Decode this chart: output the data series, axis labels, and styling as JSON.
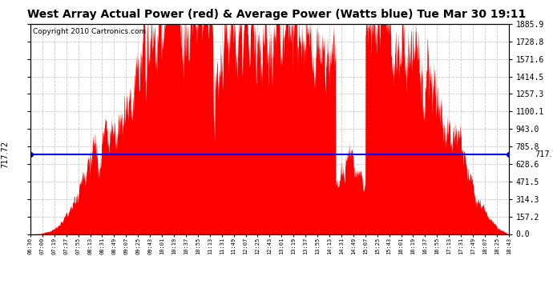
{
  "title": "West Array Actual Power (red) & Average Power (Watts blue) Tue Mar 30 19:11",
  "copyright": "Copyright 2010 Cartronics.com",
  "average_power": 717.72,
  "y_max": 1885.9,
  "y_ticks": [
    0.0,
    157.2,
    314.3,
    471.5,
    628.6,
    785.8,
    943.0,
    1100.1,
    1257.3,
    1414.5,
    1571.6,
    1728.8,
    1885.9
  ],
  "x_labels": [
    "06:36",
    "07:00",
    "07:19",
    "07:37",
    "07:55",
    "08:13",
    "08:31",
    "08:49",
    "09:07",
    "09:25",
    "09:43",
    "10:01",
    "10:19",
    "10:37",
    "10:55",
    "11:13",
    "11:31",
    "11:49",
    "12:07",
    "12:25",
    "12:43",
    "13:01",
    "13:19",
    "13:37",
    "13:55",
    "14:13",
    "14:31",
    "14:49",
    "15:07",
    "15:25",
    "15:43",
    "16:01",
    "16:19",
    "16:37",
    "16:55",
    "17:13",
    "17:31",
    "17:49",
    "18:07",
    "18:25",
    "18:43"
  ],
  "fill_color": "#FF0000",
  "line_color": "#0000FF",
  "bg_color": "#FFFFFF",
  "grid_color": "#BBBBBB",
  "title_fontsize": 10,
  "copyright_fontsize": 6.5,
  "avg_label_fontsize": 7
}
